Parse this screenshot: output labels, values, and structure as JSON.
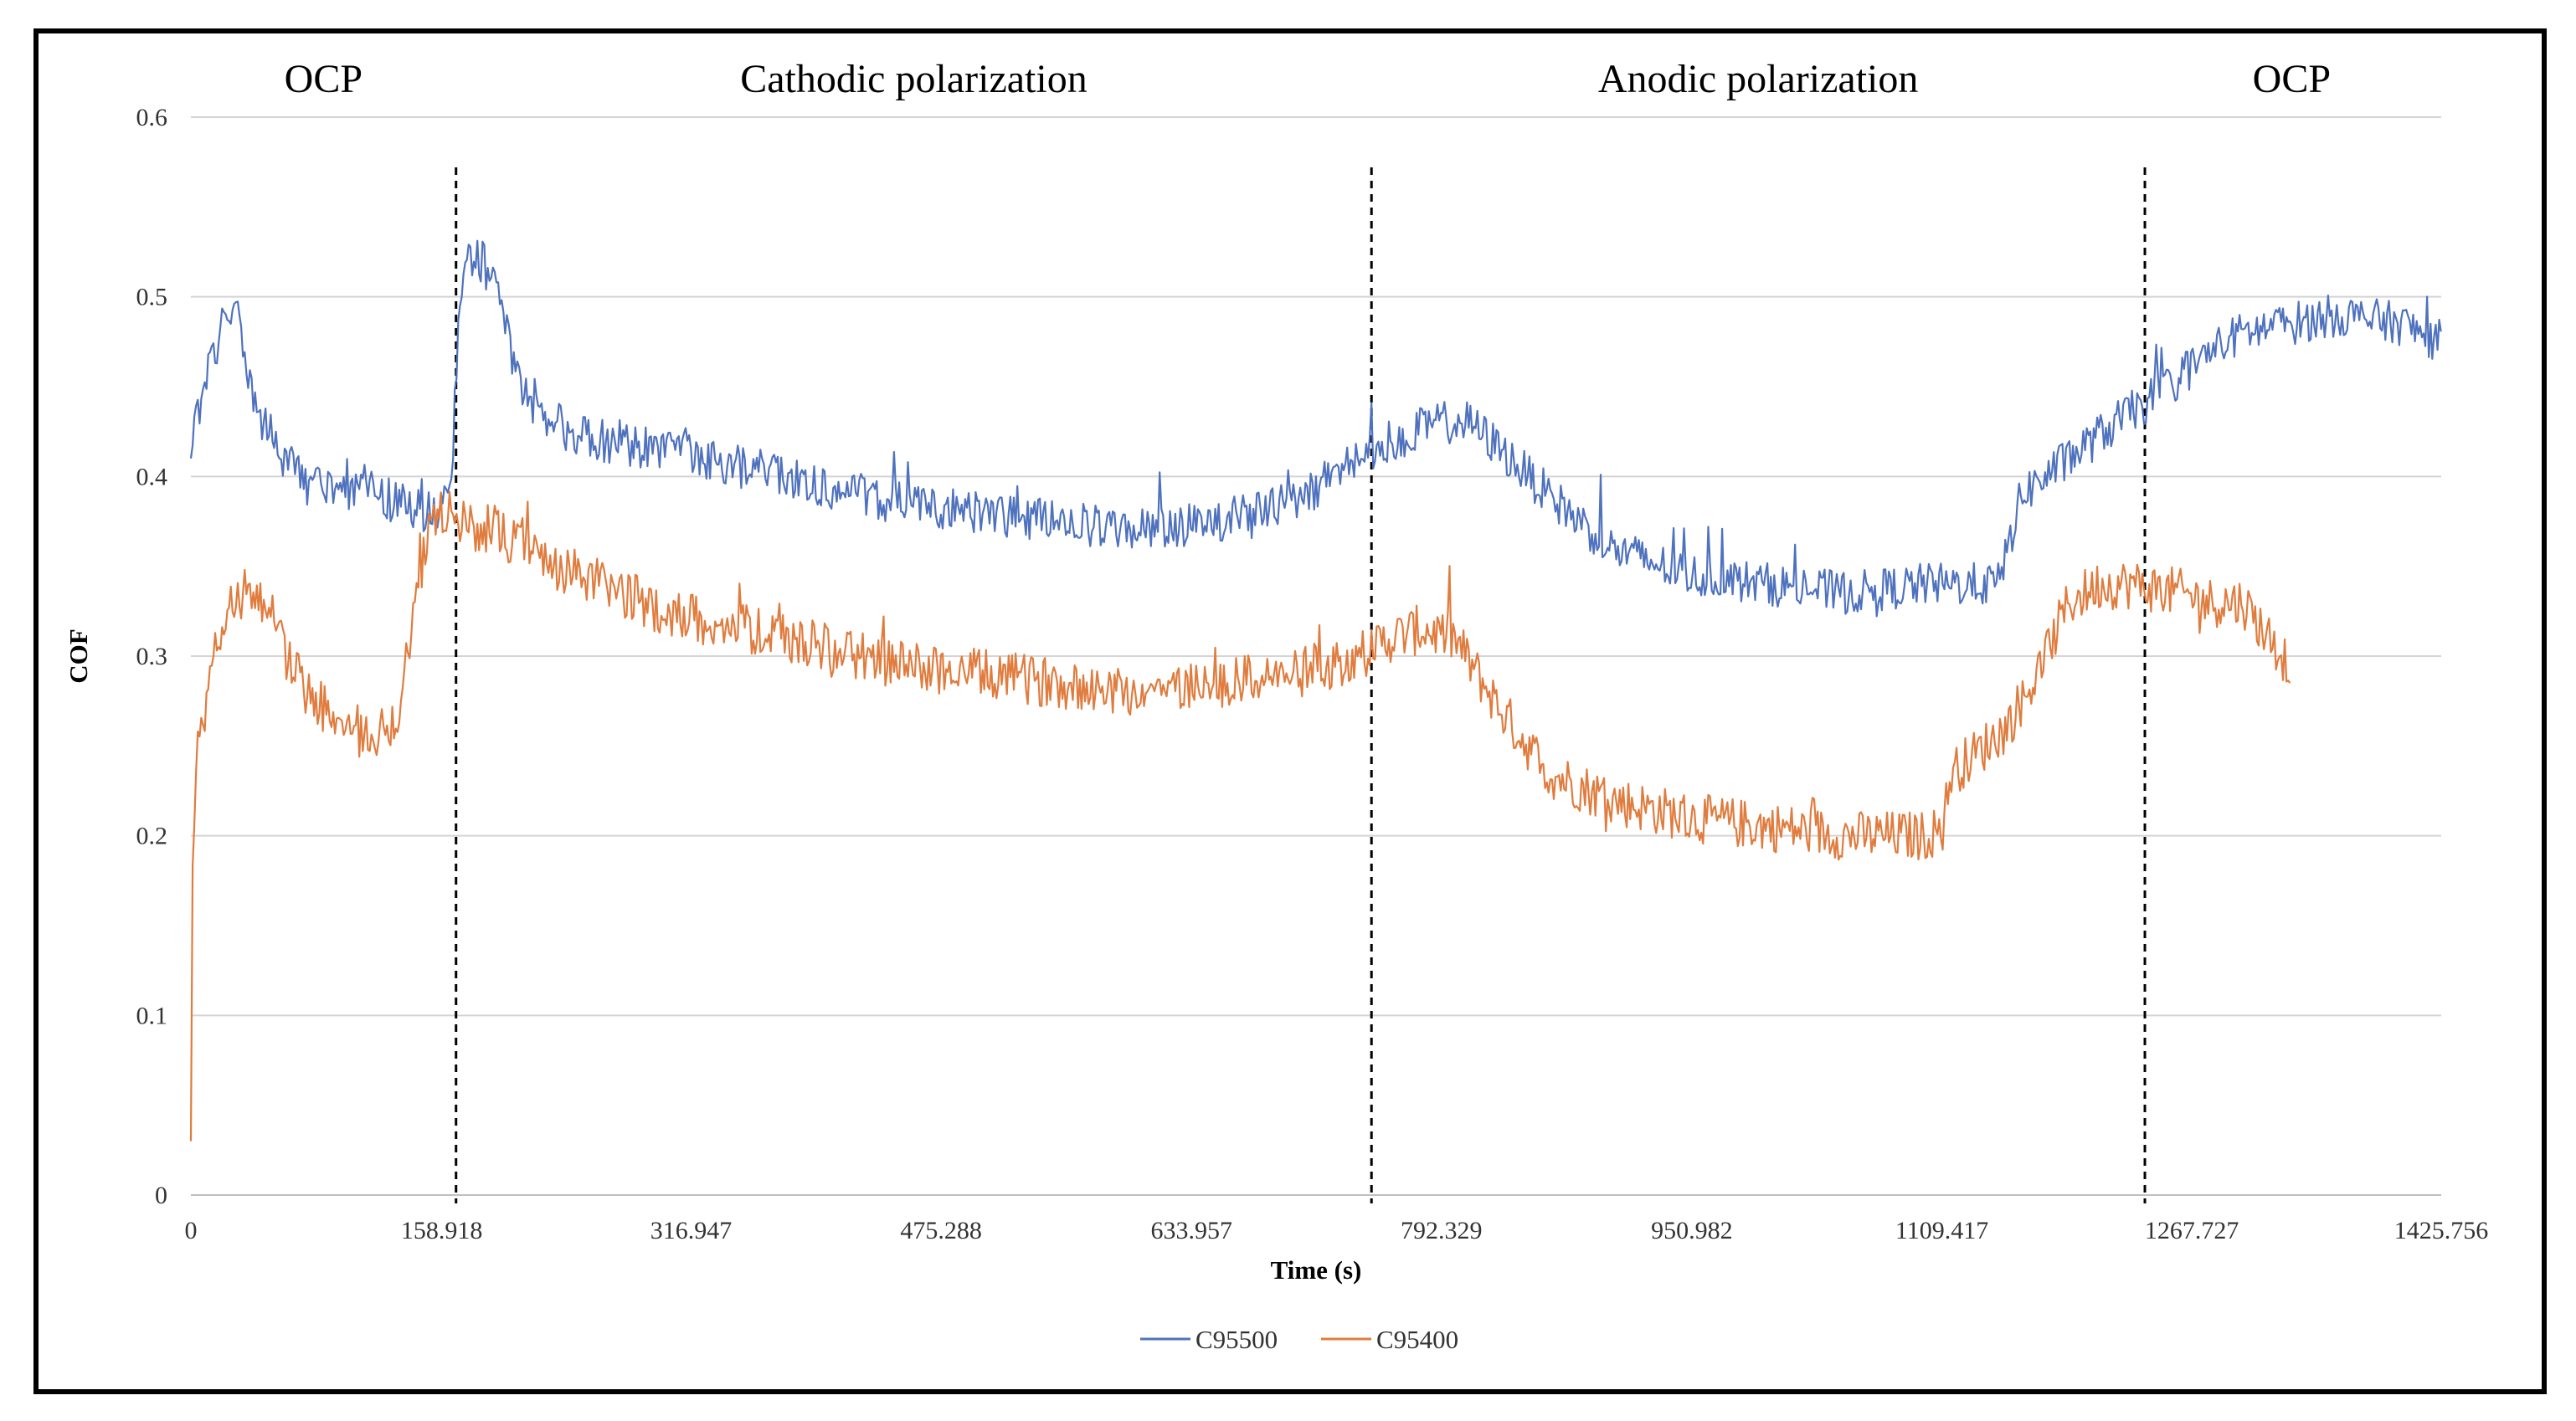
{
  "chart_data": {
    "type": "line",
    "title": "",
    "xlabel": "Time (s)",
    "ylabel": "COF",
    "xlim": [
      0,
      1425.756
    ],
    "ylim": [
      0,
      0.6
    ],
    "grid": true,
    "legend_position": "bottom",
    "x_tick_labels": [
      "0",
      "158.918",
      "316.947",
      "475.288",
      "633.957",
      "792.329",
      "950.982",
      "1109.417",
      "1267.727",
      "1425.756"
    ],
    "y_tick_labels": [
      "0",
      "0.1",
      "0.2",
      "0.3",
      "0.4",
      "0.5",
      "0.6"
    ],
    "phase_boundaries": [
      168,
      748,
      1238
    ],
    "phase_labels": [
      {
        "label": "OCP",
        "x": 84
      },
      {
        "label": "Cathodic polarization",
        "x": 458
      },
      {
        "label": "Anodic polarization",
        "x": 993
      },
      {
        "label": "OCP",
        "x": 1331
      }
    ],
    "series": [
      {
        "name": "C95500",
        "color": "#4f72be",
        "noise": 0.012,
        "x": [
          0,
          3,
          8,
          15,
          22,
          30,
          35,
          45,
          60,
          75,
          90,
          110,
          130,
          150,
          160,
          165,
          170,
          176,
          185,
          195,
          205,
          215,
          225,
          240,
          260,
          300,
          350,
          400,
          450,
          500,
          550,
          600,
          650,
          700,
          730,
          760,
          790,
          810,
          830,
          860,
          900,
          950,
          1000,
          1050,
          1100,
          1135,
          1145,
          1160,
          1190,
          1220,
          1245,
          1260,
          1280,
          1300,
          1330,
          1360,
          1400,
          1425.756
        ],
        "y": [
          0.41,
          0.43,
          0.45,
          0.47,
          0.49,
          0.49,
          0.46,
          0.43,
          0.41,
          0.395,
          0.39,
          0.395,
          0.385,
          0.38,
          0.385,
          0.39,
          0.5,
          0.52,
          0.52,
          0.5,
          0.46,
          0.44,
          0.43,
          0.425,
          0.42,
          0.415,
          0.405,
          0.395,
          0.385,
          0.38,
          0.375,
          0.37,
          0.375,
          0.385,
          0.405,
          0.42,
          0.43,
          0.43,
          0.415,
          0.39,
          0.36,
          0.345,
          0.34,
          0.335,
          0.34,
          0.34,
          0.34,
          0.39,
          0.41,
          0.43,
          0.445,
          0.455,
          0.47,
          0.48,
          0.485,
          0.49,
          0.485,
          0.475
        ]
      },
      {
        "name": "C95400",
        "color": "#e07c3e",
        "noise": 0.014,
        "x": [
          0,
          1,
          3,
          8,
          15,
          25,
          35,
          45,
          55,
          60,
          70,
          90,
          110,
          120,
          130,
          140,
          150,
          160,
          170,
          190,
          210,
          230,
          260,
          300,
          350,
          400,
          450,
          500,
          550,
          600,
          650,
          700,
          740,
          760,
          780,
          800,
          830,
          860,
          900,
          950,
          1000,
          1050,
          1100,
          1110,
          1115,
          1130,
          1150,
          1170,
          1190,
          1210,
          1230,
          1260,
          1280,
          1300,
          1330
        ],
        "y": [
          0.03,
          0.18,
          0.24,
          0.26,
          0.3,
          0.33,
          0.335,
          0.33,
          0.32,
          0.3,
          0.285,
          0.265,
          0.26,
          0.255,
          0.26,
          0.32,
          0.37,
          0.38,
          0.375,
          0.37,
          0.36,
          0.35,
          0.34,
          0.325,
          0.315,
          0.305,
          0.295,
          0.29,
          0.285,
          0.28,
          0.285,
          0.29,
          0.3,
          0.31,
          0.315,
          0.31,
          0.27,
          0.235,
          0.22,
          0.21,
          0.205,
          0.2,
          0.2,
          0.205,
          0.235,
          0.245,
          0.26,
          0.29,
          0.33,
          0.34,
          0.34,
          0.335,
          0.33,
          0.33,
          0.295
        ]
      }
    ]
  }
}
